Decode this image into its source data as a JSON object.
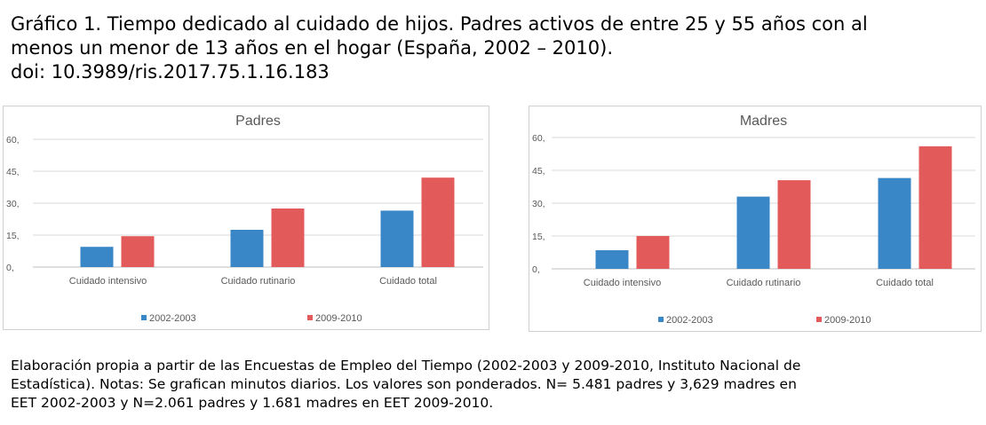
{
  "title": {
    "line1": "Gráfico 1. Tiempo dedicado al cuidado de hijos. Padres activos de entre 25 y 55 años con al",
    "line2": "menos un menor de 13 años en el hogar (España, 2002 – 2010).",
    "line3": "doi: 10.3989/ris.2017.75.1.16.183"
  },
  "note": {
    "line1": "Elaboración propia a partir de las Encuestas de Empleo del Tiempo (2002-2003 y 2009-2010, Instituto Nacional de",
    "line2": "Estadística). Notas: Se grafican minutos diarios. Los valores son ponderados. N= 5.481 padres y 3,629 madres en",
    "line3": "EET 2002-2003 y N=2.061 padres y 1.681 madres en EET 2009-2010."
  },
  "colors": {
    "series_2002": "#3a87c8",
    "series_2009": "#e35a5a"
  },
  "chart_data": [
    {
      "type": "bar",
      "title": "Padres",
      "categories": [
        "Cuidado intensivo",
        "Cuidado rutinario",
        "Cuidado total"
      ],
      "series": [
        {
          "name": "2002-2003",
          "values": [
            9.5,
            17.5,
            26.5
          ]
        },
        {
          "name": "2009-2010",
          "values": [
            14.5,
            27.5,
            42
          ]
        }
      ],
      "yticks": [
        "0,",
        "15,",
        "30,",
        "45,",
        "60,"
      ],
      "ylim": [
        0,
        60
      ],
      "grid": true,
      "legend": "bottom"
    },
    {
      "type": "bar",
      "title": "Madres",
      "categories": [
        "Cuidado intensivo",
        "Cuidado rutinario",
        "Cuidado total"
      ],
      "series": [
        {
          "name": "2002-2003",
          "values": [
            8.5,
            33,
            41.5
          ]
        },
        {
          "name": "2009-2010",
          "values": [
            15,
            40.5,
            56
          ]
        }
      ],
      "yticks": [
        "0,",
        "15,",
        "30,",
        "45,",
        "60,"
      ],
      "ylim": [
        0,
        60
      ],
      "grid": true,
      "legend": "bottom"
    }
  ]
}
